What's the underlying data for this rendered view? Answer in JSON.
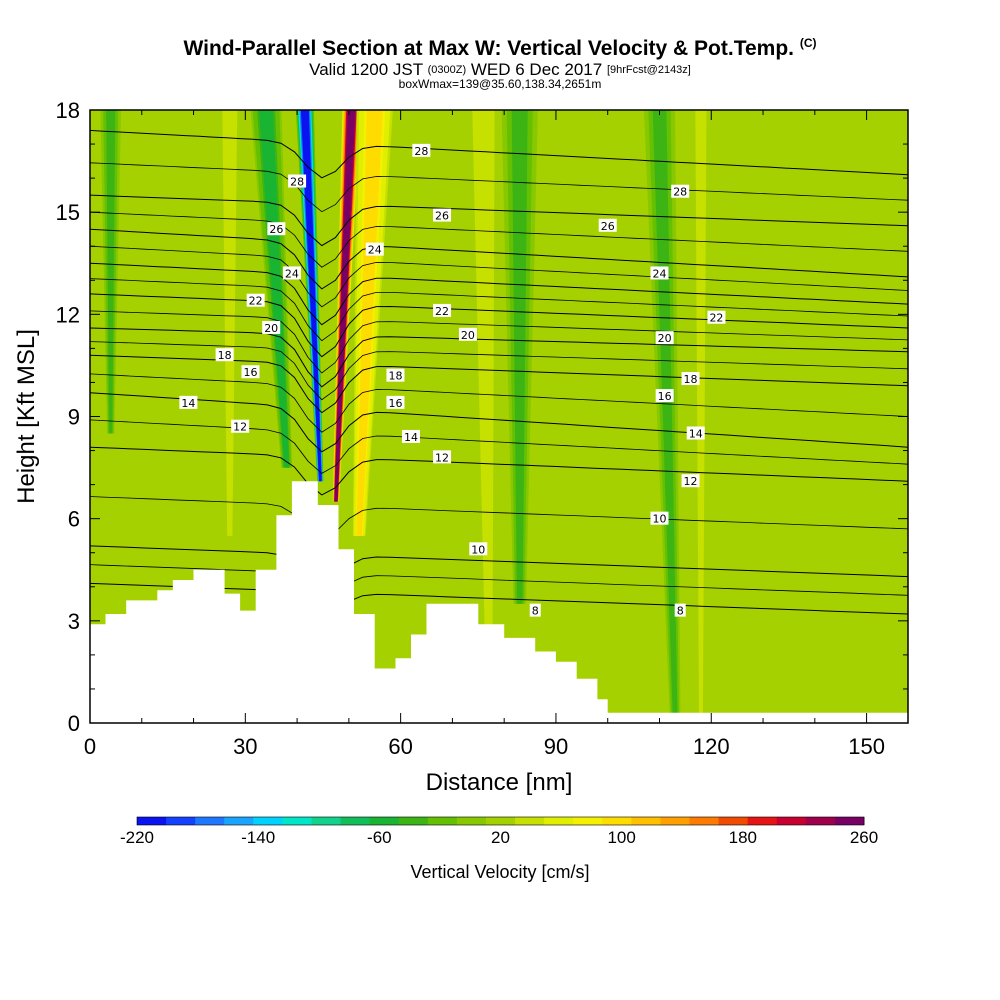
{
  "header": {
    "title": "Wind-Parallel Section at Max W: Vertical Velocity & Pot.Temp.",
    "copyright": "(C)",
    "valid_text": "Valid 1200 JST",
    "valid_utc": "(0300Z)",
    "valid_date": "WED 6 Dec 2017",
    "forecast_info": "[9hrFcst@2143z]",
    "box_info": "boxWmax=139@35.60,138.34,2651m"
  },
  "colors": {
    "background_field": "#a6d100",
    "terrain": "#ffffff",
    "contour": "#000000"
  },
  "chart_data": {
    "type": "contour",
    "xlabel": "Distance [nm]",
    "ylabel": "Height [Kft MSL]",
    "xlim": [
      0,
      158
    ],
    "ylim": [
      0,
      18
    ],
    "x_ticks": [
      0,
      30,
      60,
      90,
      120,
      150
    ],
    "y_ticks": [
      0,
      3,
      6,
      9,
      12,
      15,
      18
    ],
    "terrain_profile": [
      [
        0,
        2.9
      ],
      [
        3,
        3.2
      ],
      [
        7,
        3.6
      ],
      [
        13,
        3.9
      ],
      [
        16,
        4.2
      ],
      [
        20,
        4.5
      ],
      [
        26,
        3.8
      ],
      [
        29,
        3.3
      ],
      [
        32,
        4.5
      ],
      [
        36,
        6.1
      ],
      [
        39,
        7.1
      ],
      [
        44,
        6.4
      ],
      [
        48,
        5.1
      ],
      [
        51,
        3.2
      ],
      [
        55,
        1.6
      ],
      [
        59,
        1.9
      ],
      [
        62,
        2.6
      ],
      [
        65,
        3.5
      ],
      [
        75,
        2.9
      ],
      [
        80,
        2.5
      ],
      [
        86,
        2.1
      ],
      [
        90,
        1.8
      ],
      [
        94,
        1.3
      ],
      [
        98,
        0.7
      ],
      [
        100,
        0.3
      ],
      [
        158,
        0.3
      ]
    ],
    "velocity_bands": [
      {
        "x_top": 41.5,
        "x_bottom": 44.5,
        "y_bottom": 7.1,
        "value": -220,
        "width_top": 3.5
      },
      {
        "x_top": 50.5,
        "x_bottom": 47.5,
        "y_bottom": 6.5,
        "value": 260,
        "width_top": 3.5
      },
      {
        "x_top": 34,
        "x_bottom": 38,
        "y_bottom": 7.5,
        "value": -60,
        "width_top": 6
      },
      {
        "x_top": 55,
        "x_bottom": 52,
        "y_bottom": 5.5,
        "value": 100,
        "width_top": 7
      },
      {
        "x_top": 76,
        "x_bottom": 77,
        "y_bottom": 2.6,
        "value": 40,
        "width_top": 6
      },
      {
        "x_top": 83,
        "x_bottom": 83,
        "y_bottom": 3.5,
        "value": -40,
        "width_top": 7
      },
      {
        "x_top": 27,
        "x_bottom": 27,
        "y_bottom": 5.5,
        "value": 40,
        "width_top": 4
      },
      {
        "x_top": 110,
        "x_bottom": 113,
        "y_bottom": 0.3,
        "value": -40,
        "width_top": 6
      },
      {
        "x_top": 118,
        "x_bottom": 118,
        "y_bottom": 0.3,
        "value": 40,
        "width_top": 3
      },
      {
        "x_top": 4,
        "x_bottom": 4,
        "y_bottom": 8.5,
        "value": -40,
        "width_top": 4
      }
    ],
    "isentropes": [
      {
        "label": "8",
        "y_left": 4.1,
        "y_right": 3.2,
        "label_positions": [
          [
            86,
            3.3
          ],
          [
            114,
            3.3
          ]
        ]
      },
      {
        "label": "10",
        "y_left": 5.2,
        "y_right": 4.3,
        "label_positions": [
          [
            75,
            5.1
          ],
          [
            110,
            6.0
          ]
        ]
      },
      {
        "label": "12",
        "y_left": 8.1,
        "y_right": 7.1,
        "label_positions": [
          [
            29,
            8.7
          ],
          [
            68,
            7.8
          ],
          [
            116,
            7.1
          ]
        ]
      },
      {
        "label": "14",
        "y_left": 9.7,
        "y_right": 8.1,
        "label_positions": [
          [
            19,
            9.4
          ],
          [
            62,
            8.4
          ],
          [
            117,
            8.5
          ]
        ]
      },
      {
        "label": "16",
        "y_left": 10.8,
        "y_right": 9.9,
        "label_positions": [
          [
            31,
            10.3
          ],
          [
            59,
            9.4
          ],
          [
            111,
            9.6
          ]
        ]
      },
      {
        "label": "18",
        "y_left": 11.6,
        "y_right": 10.9,
        "label_positions": [
          [
            26,
            10.8
          ],
          [
            59,
            10.2
          ],
          [
            116,
            10.1
          ]
        ]
      },
      {
        "label": "20",
        "y_left": 12.6,
        "y_right": 11.6,
        "label_positions": [
          [
            35,
            11.6
          ],
          [
            73,
            11.4
          ],
          [
            111,
            11.3
          ]
        ]
      },
      {
        "label": "22",
        "y_left": 13.5,
        "y_right": 12.3,
        "label_positions": [
          [
            32,
            12.4
          ],
          [
            68,
            12.1
          ],
          [
            121,
            11.9
          ]
        ]
      },
      {
        "label": "24",
        "y_left": 14.5,
        "y_right": 13.1,
        "label_positions": [
          [
            39,
            13.2
          ],
          [
            55,
            13.9
          ],
          [
            110,
            13.2
          ]
        ]
      },
      {
        "label": "26",
        "y_left": 15.5,
        "y_right": 14.6,
        "label_positions": [
          [
            36,
            14.5
          ],
          [
            68,
            14.9
          ],
          [
            100,
            14.6
          ]
        ]
      },
      {
        "label": "28",
        "y_left": 17.4,
        "y_right": 16.1,
        "label_positions": [
          [
            40,
            15.9
          ],
          [
            64,
            16.8
          ],
          [
            114,
            15.6
          ]
        ]
      }
    ],
    "colorbar": {
      "label": "Vertical Velocity [cm/s]",
      "min": -220,
      "max": 260,
      "step": 20,
      "tick_labels": [
        "-220",
        "-140",
        "-60",
        "20",
        "100",
        "180",
        "260"
      ],
      "colors": [
        "#0a14f0",
        "#1441ff",
        "#1e78ff",
        "#19a5ff",
        "#00d2ff",
        "#00e6c8",
        "#10d28c",
        "#10be5a",
        "#19b432",
        "#3cb414",
        "#64c000",
        "#88c800",
        "#a6d100",
        "#c6e000",
        "#e0ef00",
        "#f5f000",
        "#ffdc00",
        "#ffc000",
        "#ffa000",
        "#ff7a00",
        "#f04b00",
        "#e61414",
        "#c80032",
        "#a0004b",
        "#780064"
      ]
    }
  }
}
